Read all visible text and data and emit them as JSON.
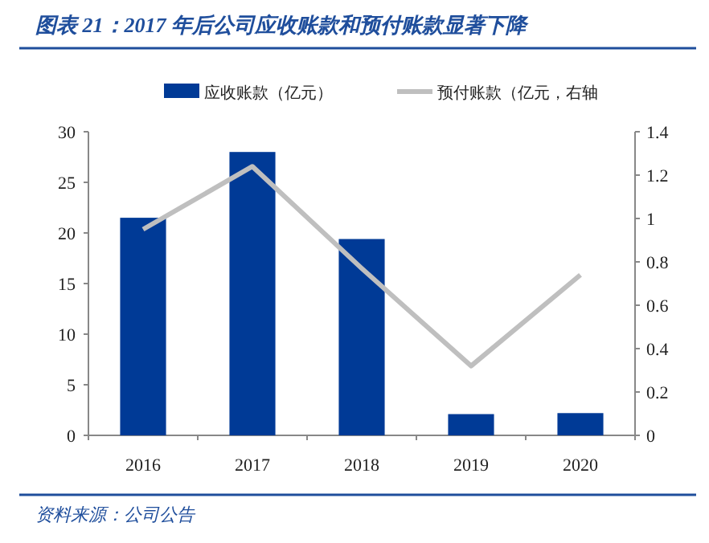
{
  "chart_data": {
    "type": "bar",
    "title": "图表 21：2017 年后公司应收账款和预付账款显著下降",
    "categories": [
      "2016",
      "2017",
      "2018",
      "2019",
      "2020"
    ],
    "series": [
      {
        "name": "应收账款（亿元）",
        "color": "#003a96",
        "values": [
          21.5,
          28,
          19.4,
          2.1,
          2.2
        ]
      },
      {
        "name": "预付账款（亿元，右轴",
        "type": "line",
        "axis": "y2",
        "color": "#bfbfbf",
        "values": [
          0.95,
          1.24,
          0.77,
          0.32,
          0.74
        ]
      }
    ],
    "ylim": [
      0,
      30
    ],
    "yticks": [
      0,
      5,
      10,
      15,
      20,
      25,
      30
    ],
    "y2lim": [
      0,
      1.4
    ],
    "y2ticks": [
      0,
      0.2,
      0.4,
      0.6,
      0.8,
      1,
      1.2,
      1.4
    ],
    "legend": "top",
    "grid": false,
    "annotations": [
      "资料来源：公司公告"
    ]
  }
}
